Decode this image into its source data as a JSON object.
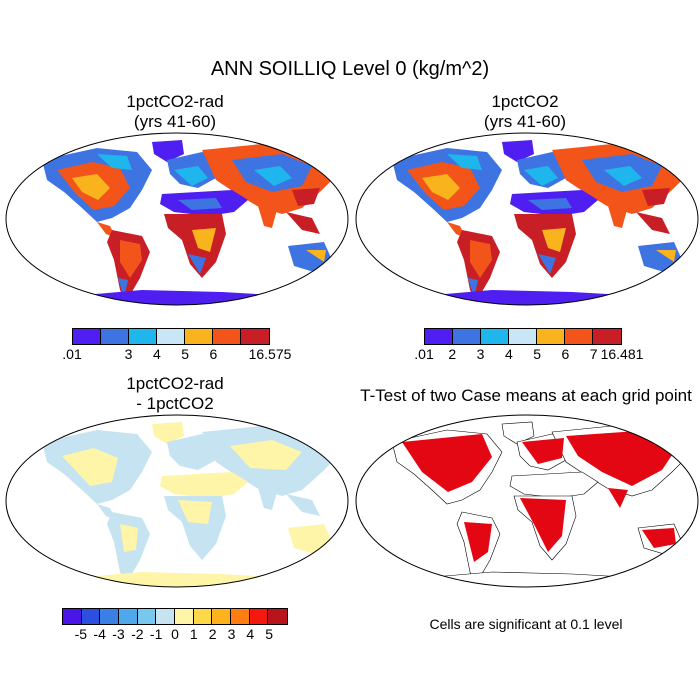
{
  "title": "ANN SOILLIQ Level 0 (kg/m^2)",
  "panels": {
    "top_left": {
      "title_line1": "1pctCO2-rad",
      "title_line2": "(yrs 41-60)",
      "colorbar": {
        "colors": [
          "#4f1ff2",
          "#3d74e2",
          "#1eb6ec",
          "#c8e6f5",
          "#f9b31d",
          "#f25419",
          "#c81e26"
        ],
        "labels": [
          ".01",
          "3",
          "4",
          "5",
          "6",
          "16.575"
        ]
      }
    },
    "top_right": {
      "title_line1": "1pctCO2",
      "title_line2": "(yrs 41-60)",
      "colorbar": {
        "colors": [
          "#4f1ff2",
          "#3d74e2",
          "#1eb6ec",
          "#c8e6f5",
          "#f9b31d",
          "#f25419",
          "#c81e26"
        ],
        "labels": [
          ".01",
          "2",
          "3",
          "4",
          "5",
          "6",
          "7",
          "16.481"
        ]
      }
    },
    "bottom_left": {
      "title_line1": "1pctCO2-rad",
      "title_line2": "- 1pctCO2",
      "colorbar": {
        "colors": [
          "#4a16e8",
          "#2c4fe0",
          "#3a7fe4",
          "#4fa7ec",
          "#78c8ee",
          "#c5e3f1",
          "#fff5a8",
          "#ffd84a",
          "#ffb21c",
          "#ff7d13",
          "#f5180f",
          "#b8141c"
        ],
        "labels": [
          "-5",
          "-4",
          "-3",
          "-2",
          "-1",
          "0",
          "1",
          "2",
          "3",
          "4",
          "5"
        ]
      }
    },
    "bottom_right": {
      "title": "T-Test of two Case means at each grid point",
      "note": "Cells are significant at 0.1 level"
    }
  }
}
